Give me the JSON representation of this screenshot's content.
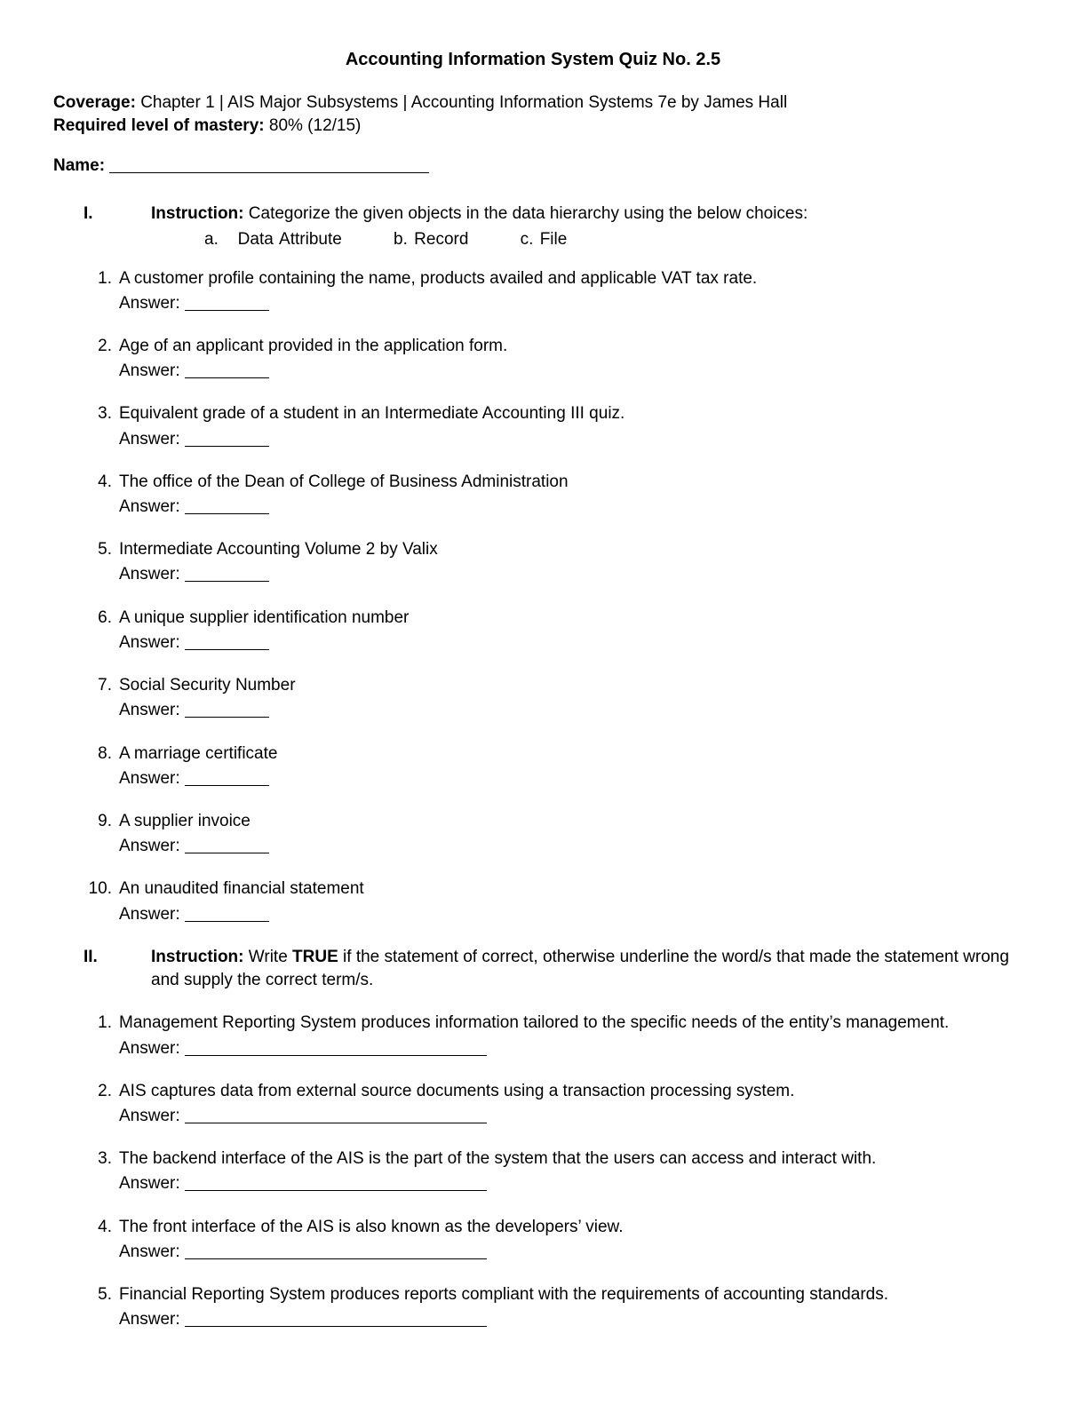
{
  "title": "Accounting Information System Quiz No. 2.5",
  "coverage": {
    "label": "Coverage:",
    "text": " Chapter 1 | AIS Major Subsystems | Accounting Information Systems 7e by James Hall"
  },
  "mastery": {
    "label": "Required level of mastery:",
    "text": " 80% (12/15)"
  },
  "name_label": "Name: ",
  "section1": {
    "num": "I.",
    "instr_label": "Instruction:",
    "instr_text": " Categorize the given objects in the data hierarchy using the below choices:",
    "choices": "a.   Data Attribute        b. Record        c. File",
    "answer_label": "Answer: ",
    "items": [
      {
        "n": "1.",
        "t": "A customer profile containing the name, products availed and applicable VAT tax rate."
      },
      {
        "n": "2.",
        "t": "Age of an applicant provided in the application form."
      },
      {
        "n": "3.",
        "t": "Equivalent grade of a student in an Intermediate Accounting III quiz."
      },
      {
        "n": "4.",
        "t": "The office of the Dean of College of Business Administration"
      },
      {
        "n": "5.",
        "t": "Intermediate Accounting Volume 2 by Valix"
      },
      {
        "n": "6.",
        "t": "A unique supplier identification number"
      },
      {
        "n": "7.",
        "t": "Social Security Number"
      },
      {
        "n": "8.",
        "t": "A marriage certificate"
      },
      {
        "n": "9.",
        "t": "A supplier invoice"
      },
      {
        "n": "10.",
        "t": "An unaudited financial statement"
      }
    ]
  },
  "section2": {
    "num": "II.",
    "instr_label": "Instruction:",
    "instr_text_a": " Write ",
    "instr_bold": "TRUE",
    "instr_text_b": " if the statement of correct, otherwise underline the word/s that made the statement wrong and supply the correct term/s.",
    "answer_label": "Answer: ",
    "items": [
      {
        "n": "1.",
        "t": "Management Reporting System produces information tailored to the specific needs of the entity’s management."
      },
      {
        "n": "2.",
        "t": "AIS captures data from external source documents using a transaction processing system."
      },
      {
        "n": "3.",
        "t": "The backend interface of the AIS is the part of the system that the users can access and interact with."
      },
      {
        "n": "4.",
        "t": "The front interface of the AIS is also known as the developers’ view."
      },
      {
        "n": "5.",
        "t": "Financial Reporting System produces reports compliant with the requirements of accounting standards."
      }
    ]
  }
}
